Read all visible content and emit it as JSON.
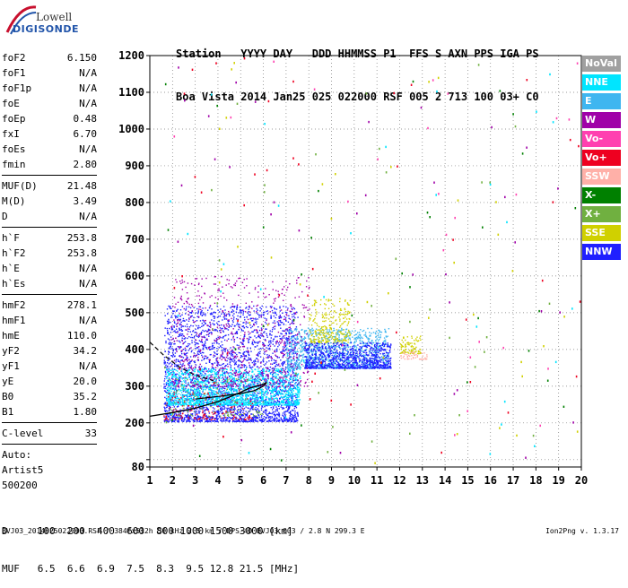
{
  "logo": {
    "line1": "Lowell",
    "line2": "DIGISONDE"
  },
  "header": {
    "line1": "Station   YYYY DAY   DDD HHMMSS P1  FFS S AXN PPS IGA PS",
    "line2": "Boa Vista 2014 Jan25 025 022000 RSF 005 2 713 100 03+ C0"
  },
  "params": {
    "group1": [
      {
        "name": "foF2",
        "value": "6.150"
      },
      {
        "name": "foF1",
        "value": "N/A"
      },
      {
        "name": "foF1p",
        "value": "N/A"
      },
      {
        "name": "foE",
        "value": "N/A"
      },
      {
        "name": "foEp",
        "value": "0.48"
      },
      {
        "name": "fxI",
        "value": "6.70"
      },
      {
        "name": "foEs",
        "value": "N/A"
      },
      {
        "name": "fmin",
        "value": "2.80"
      }
    ],
    "group2": [
      {
        "name": "MUF(D)",
        "value": "21.48"
      },
      {
        "name": "M(D)",
        "value": "3.49"
      },
      {
        "name": "D",
        "value": "N/A"
      }
    ],
    "group3": [
      {
        "name": "h`F",
        "value": "253.8"
      },
      {
        "name": "h`F2",
        "value": "253.8"
      },
      {
        "name": "h`E",
        "value": "N/A"
      },
      {
        "name": "h`Es",
        "value": "N/A"
      }
    ],
    "group4": [
      {
        "name": "hmF2",
        "value": "278.1"
      },
      {
        "name": "hmF1",
        "value": "N/A"
      },
      {
        "name": "hmE",
        "value": "110.0"
      },
      {
        "name": "yF2",
        "value": "34.2"
      },
      {
        "name": "yF1",
        "value": "N/A"
      },
      {
        "name": "yE",
        "value": "20.0"
      },
      {
        "name": "B0",
        "value": "35.2"
      },
      {
        "name": "B1",
        "value": "1.80"
      }
    ],
    "clevel": {
      "name": "C-level",
      "value": "33"
    },
    "auto": [
      "Auto:",
      "Artist5",
      "500200"
    ]
  },
  "legend": [
    {
      "label": "NoVal",
      "color": "#a0a0a0"
    },
    {
      "label": "NNE",
      "color": "#00e5ff"
    },
    {
      "label": "E",
      "color": "#3fb6f0"
    },
    {
      "label": "W",
      "color": "#a000a8"
    },
    {
      "label": "Vo-",
      "color": "#ff40b0"
    },
    {
      "label": "Vo+",
      "color": "#ee0020"
    },
    {
      "label": "SSW",
      "color": "#ffb0a8"
    },
    {
      "label": "X-",
      "color": "#008000"
    },
    {
      "label": "X+",
      "color": "#70b040"
    },
    {
      "label": "SSE",
      "color": "#d0d000"
    },
    {
      "label": "NNW",
      "color": "#2020ff"
    }
  ],
  "mufd": {
    "line1": "D     100  200  400  600  800 1000 1500 3000 [km]",
    "line2": "MUF   6.5  6.6  6.9  7.5  8.3  9.5 12.8 21.5 [MHz]"
  },
  "footer": {
    "left": "BVJ03_2014025022000.RSF / 384fx512h 50 kHz 2.5 km / DPS-4D BVJ03 003 / 2.8 N 299.3 E",
    "right": "Ion2Png v. 1.3.17"
  },
  "chart_data": {
    "type": "scatter",
    "title": "",
    "xlabel": "",
    "ylabel": "",
    "xlim": [
      1,
      20
    ],
    "ylim": [
      80,
      1200
    ],
    "x_ticks": [
      1,
      2,
      3,
      4,
      5,
      6,
      7,
      8,
      9,
      10,
      11,
      12,
      13,
      14,
      15,
      16,
      17,
      18,
      19,
      20
    ],
    "y_ticks": [
      80,
      100,
      200,
      300,
      400,
      500,
      600,
      700,
      800,
      900,
      1000,
      1100,
      1200
    ],
    "y_tick_labels": [
      "80",
      "",
      "200",
      "300",
      "400",
      "500",
      "600",
      "700",
      "800",
      "900",
      "1000",
      "1100",
      "1200"
    ],
    "grid": true,
    "echo_regions": [
      {
        "name": "NNW",
        "x": [
          1.6,
          7.5
        ],
        "y": [
          205,
          520
        ],
        "density": 3000
      },
      {
        "name": "NNE",
        "x": [
          1.7,
          7.6
        ],
        "y": [
          250,
          350
        ],
        "density": 1800
      },
      {
        "name": "E",
        "x": [
          7.0,
          11.5
        ],
        "y": [
          350,
          460
        ],
        "density": 1200
      },
      {
        "name": "NNW",
        "x": [
          7.8,
          11.6
        ],
        "y": [
          350,
          420
        ],
        "density": 900
      },
      {
        "name": "W",
        "x": [
          1.9,
          8.0
        ],
        "y": [
          300,
          600
        ],
        "density": 700
      },
      {
        "name": "SSE",
        "x": [
          8.0,
          9.8
        ],
        "y": [
          420,
          540
        ],
        "density": 260
      },
      {
        "name": "SSE",
        "x": [
          12.0,
          12.9
        ],
        "y": [
          390,
          440
        ],
        "density": 90
      },
      {
        "name": "SSW",
        "x": [
          12.0,
          13.2
        ],
        "y": [
          375,
          395
        ],
        "density": 50
      },
      {
        "name": "Vo+",
        "x": [
          1.6,
          5.5
        ],
        "y": [
          210,
          290
        ],
        "density": 150
      },
      {
        "name": "X+",
        "x": [
          1.8,
          6.0
        ],
        "y": [
          220,
          330
        ],
        "density": 120
      }
    ],
    "scatter_noise": {
      "x": [
        1.5,
        20
      ],
      "y": [
        90,
        1200
      ],
      "count": 260
    },
    "o_trace": {
      "x": [
        1.0,
        2.0,
        3.0,
        4.0,
        4.8,
        5.4,
        5.9,
        6.15
      ],
      "y": [
        218,
        228,
        240,
        258,
        278,
        295,
        303,
        310
      ]
    },
    "profile_dashed": {
      "x": [
        1.0,
        1.6,
        2.3,
        3.0,
        3.8
      ],
      "y": [
        420,
        385,
        352,
        330,
        315
      ]
    },
    "profile_solid": {
      "x": [
        3.0,
        4.0,
        5.0,
        5.6,
        6.0,
        6.15
      ],
      "y": [
        265,
        272,
        280,
        288,
        300,
        310
      ]
    }
  }
}
